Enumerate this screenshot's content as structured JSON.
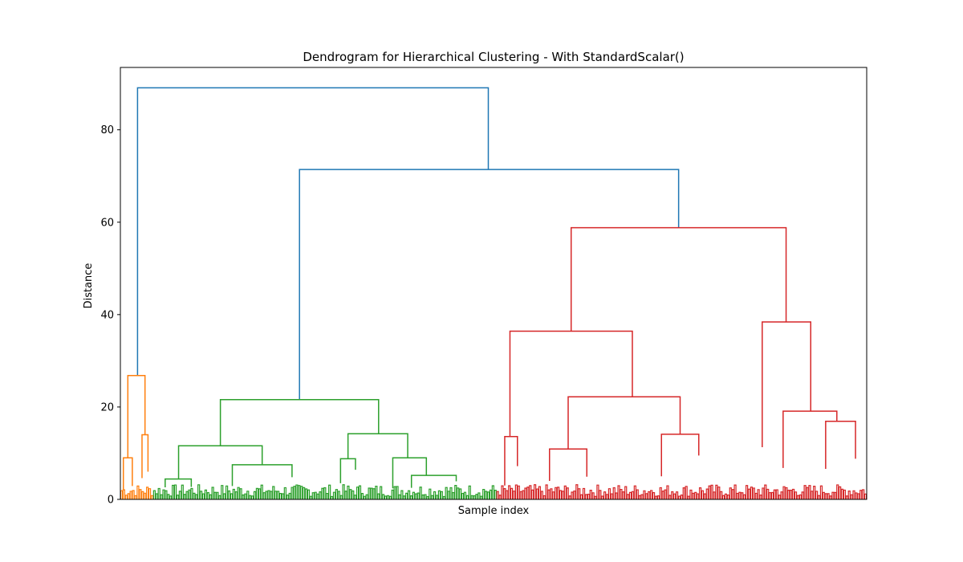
{
  "chart_data": {
    "type": "dendrogram",
    "title": "Dendrogram for Hierarchical Clustering - With StandardScalar()",
    "xlabel": "Sample index",
    "ylabel": "Distance",
    "ylim": [
      0,
      93.5
    ],
    "y_ticks": [
      0,
      20,
      40,
      60,
      80
    ],
    "grid": false,
    "colors": {
      "link_above_threshold": "#1f77b4",
      "cluster_1": "#ff7f0e",
      "cluster_2": "#2ca02c",
      "cluster_3": "#d62728",
      "axes": "#000000"
    },
    "clusters": [
      {
        "color_key": "cluster_1",
        "x_range": [
          0,
          4.4
        ],
        "merge_height": 26.8
      },
      {
        "color_key": "cluster_2",
        "x_range": [
          4.4,
          50.4
        ],
        "merge_height": 21.6
      },
      {
        "color_key": "cluster_3",
        "x_range": [
          50.4,
          100
        ],
        "merge_height": 58.8
      }
    ],
    "links": [
      {
        "color_key": "link_above_threshold",
        "left_x": 2.3,
        "left_h": 26.8,
        "right_x": 49.3,
        "right_h": 71.4,
        "height": 89.1
      },
      {
        "color_key": "link_above_threshold",
        "left_x": 24.0,
        "left_h": 21.6,
        "right_x": 74.8,
        "right_h": 58.8,
        "height": 71.4
      },
      {
        "color_key": "cluster_1",
        "left_x": 1.0,
        "left_h": 9.0,
        "right_x": 3.3,
        "right_h": 14.0,
        "height": 26.8
      },
      {
        "color_key": "cluster_1",
        "left_x": 0.4,
        "left_h": 2.0,
        "right_x": 1.6,
        "right_h": 2.9,
        "height": 9.0
      },
      {
        "color_key": "cluster_1",
        "left_x": 2.9,
        "left_h": 4.6,
        "right_x": 3.7,
        "right_h": 6.0,
        "height": 14.0
      },
      {
        "color_key": "cluster_2",
        "left_x": 13.4,
        "left_h": 11.6,
        "right_x": 34.6,
        "right_h": 14.2,
        "height": 21.6
      },
      {
        "color_key": "cluster_2",
        "left_x": 7.8,
        "left_h": 4.4,
        "right_x": 19.0,
        "right_h": 7.5,
        "height": 11.6
      },
      {
        "color_key": "cluster_2",
        "left_x": 6.0,
        "left_h": 2.6,
        "right_x": 9.5,
        "right_h": 2.7,
        "height": 4.4
      },
      {
        "color_key": "cluster_2",
        "left_x": 15.0,
        "left_h": 2.9,
        "right_x": 23.0,
        "right_h": 4.8,
        "height": 7.5
      },
      {
        "color_key": "cluster_2",
        "left_x": 30.5,
        "left_h": 8.8,
        "right_x": 38.5,
        "right_h": 9.0,
        "height": 14.2
      },
      {
        "color_key": "cluster_2",
        "left_x": 29.5,
        "left_h": 3.5,
        "right_x": 31.5,
        "right_h": 6.4,
        "height": 8.8
      },
      {
        "color_key": "cluster_2",
        "left_x": 36.5,
        "left_h": 2.4,
        "right_x": 41.0,
        "right_h": 5.2,
        "height": 9.0
      },
      {
        "color_key": "cluster_2",
        "left_x": 39.0,
        "left_h": 2.5,
        "right_x": 45.0,
        "right_h": 3.9,
        "height": 5.2
      },
      {
        "color_key": "cluster_3",
        "left_x": 60.4,
        "left_h": 36.4,
        "right_x": 89.2,
        "right_h": 38.4,
        "height": 58.8
      },
      {
        "color_key": "cluster_3",
        "left_x": 52.2,
        "left_h": 13.6,
        "right_x": 68.6,
        "right_h": 22.2,
        "height": 36.4
      },
      {
        "color_key": "cluster_3",
        "left_x": 51.5,
        "left_h": 3.0,
        "right_x": 53.2,
        "right_h": 7.2,
        "height": 13.6
      },
      {
        "color_key": "cluster_3",
        "left_x": 60.0,
        "left_h": 10.9,
        "right_x": 75.0,
        "right_h": 14.1,
        "height": 22.2
      },
      {
        "color_key": "cluster_3",
        "left_x": 57.5,
        "left_h": 4.0,
        "right_x": 62.5,
        "right_h": 4.9,
        "height": 10.9
      },
      {
        "color_key": "cluster_3",
        "left_x": 72.5,
        "left_h": 5.0,
        "right_x": 77.5,
        "right_h": 9.5,
        "height": 14.1
      },
      {
        "color_key": "cluster_3",
        "left_x": 86.0,
        "left_h": 11.3,
        "right_x": 92.5,
        "right_h": 19.1,
        "height": 38.4
      },
      {
        "color_key": "cluster_3",
        "left_x": 88.8,
        "left_h": 6.8,
        "right_x": 96.0,
        "right_h": 16.9,
        "height": 19.1
      },
      {
        "color_key": "cluster_3",
        "left_x": 94.5,
        "left_h": 6.6,
        "right_x": 98.5,
        "right_h": 8.8,
        "height": 16.9
      }
    ]
  }
}
